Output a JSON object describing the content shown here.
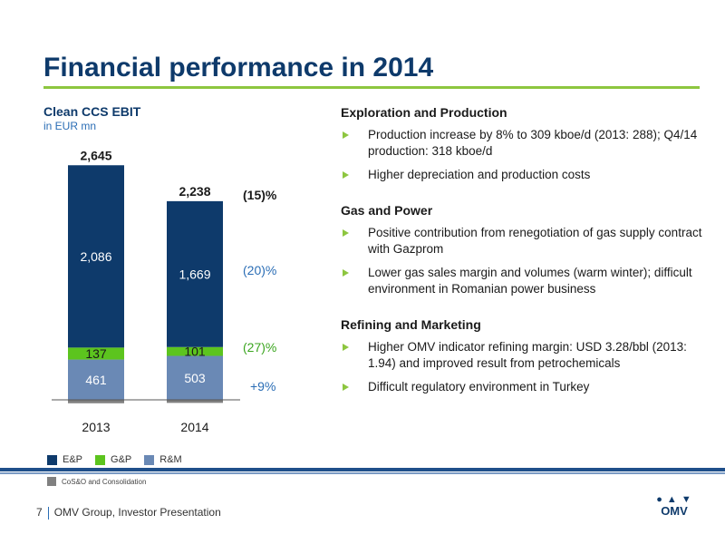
{
  "slide": {
    "title": "Financial performance in 2014",
    "page_number": "7",
    "footer_text": "OMV Group, Investor Presentation",
    "logo_text": "OMV"
  },
  "chart_heading": {
    "title": "Clean CCS EBIT",
    "subtitle": "in EUR mn"
  },
  "chart_data": {
    "type": "bar",
    "stacked": true,
    "categories": [
      "2013",
      "2014"
    ],
    "series": [
      {
        "name": "R&M",
        "values": [
          461,
          503
        ]
      },
      {
        "name": "G&P",
        "values": [
          137,
          101
        ]
      },
      {
        "name": "E&P",
        "values": [
          2086,
          1669
        ]
      },
      {
        "name": "CoS&O and Consolidation",
        "values": [
          -39,
          -35
        ]
      }
    ],
    "totals": [
      2645,
      2238
    ],
    "total_labels": [
      "2,645",
      "2,238"
    ],
    "segment_labels": {
      "E&P": [
        "2,086",
        "1,669"
      ],
      "G&P": [
        "137",
        "101"
      ],
      "R&M": [
        "461",
        "503"
      ]
    },
    "changes": {
      "total": "(15)%",
      "E&P": "(20)%",
      "G&P": "(27)%",
      "R&M": "+9%"
    },
    "colors": {
      "E&P": "#0e3a6b",
      "G&P": "#5cc41e",
      "R&M": "#6a89b5",
      "CoS&O": "#808080"
    },
    "legend": [
      "E&P",
      "G&P",
      "R&M"
    ],
    "legend_secondary": "CoS&O and Consolidation",
    "grid": false
  },
  "sections": [
    {
      "title": "Exploration and Production",
      "bullets": [
        "Production increase by 8% to 309 kboe/d (2013: 288); Q4/14 production: 318 kboe/d",
        "Higher depreciation and production costs"
      ]
    },
    {
      "title": "Gas and Power",
      "bullets": [
        "Positive contribution from renegotiation of gas supply contract with Gazprom",
        "Lower gas sales margin and volumes (warm winter); difficult environment in Romanian power business"
      ]
    },
    {
      "title": "Refining and Marketing",
      "bullets": [
        "Higher OMV indicator refining margin: USD 3.28/bbl (2013: 1.94) and improved result from petrochemicals",
        "Difficult regulatory environment in Turkey"
      ]
    }
  ]
}
